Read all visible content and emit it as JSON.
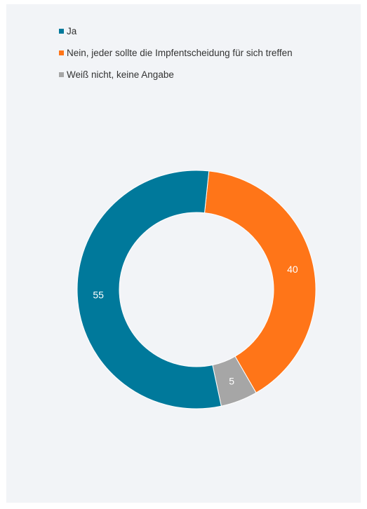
{
  "chart_data": {
    "type": "pie",
    "donut": true,
    "categories": [
      "Ja",
      "Nein, jeder sollte die Impfentscheidung für sich treffen",
      "Weiß nicht, keine Angabe"
    ],
    "values": [
      55,
      40,
      5
    ],
    "colors": [
      "#00799b",
      "#ff7518",
      "#a6a6a6"
    ],
    "legend_position": "top-left",
    "data_labels": [
      "55",
      "40",
      "5"
    ]
  },
  "page": {
    "background": "#f2f4f7"
  }
}
